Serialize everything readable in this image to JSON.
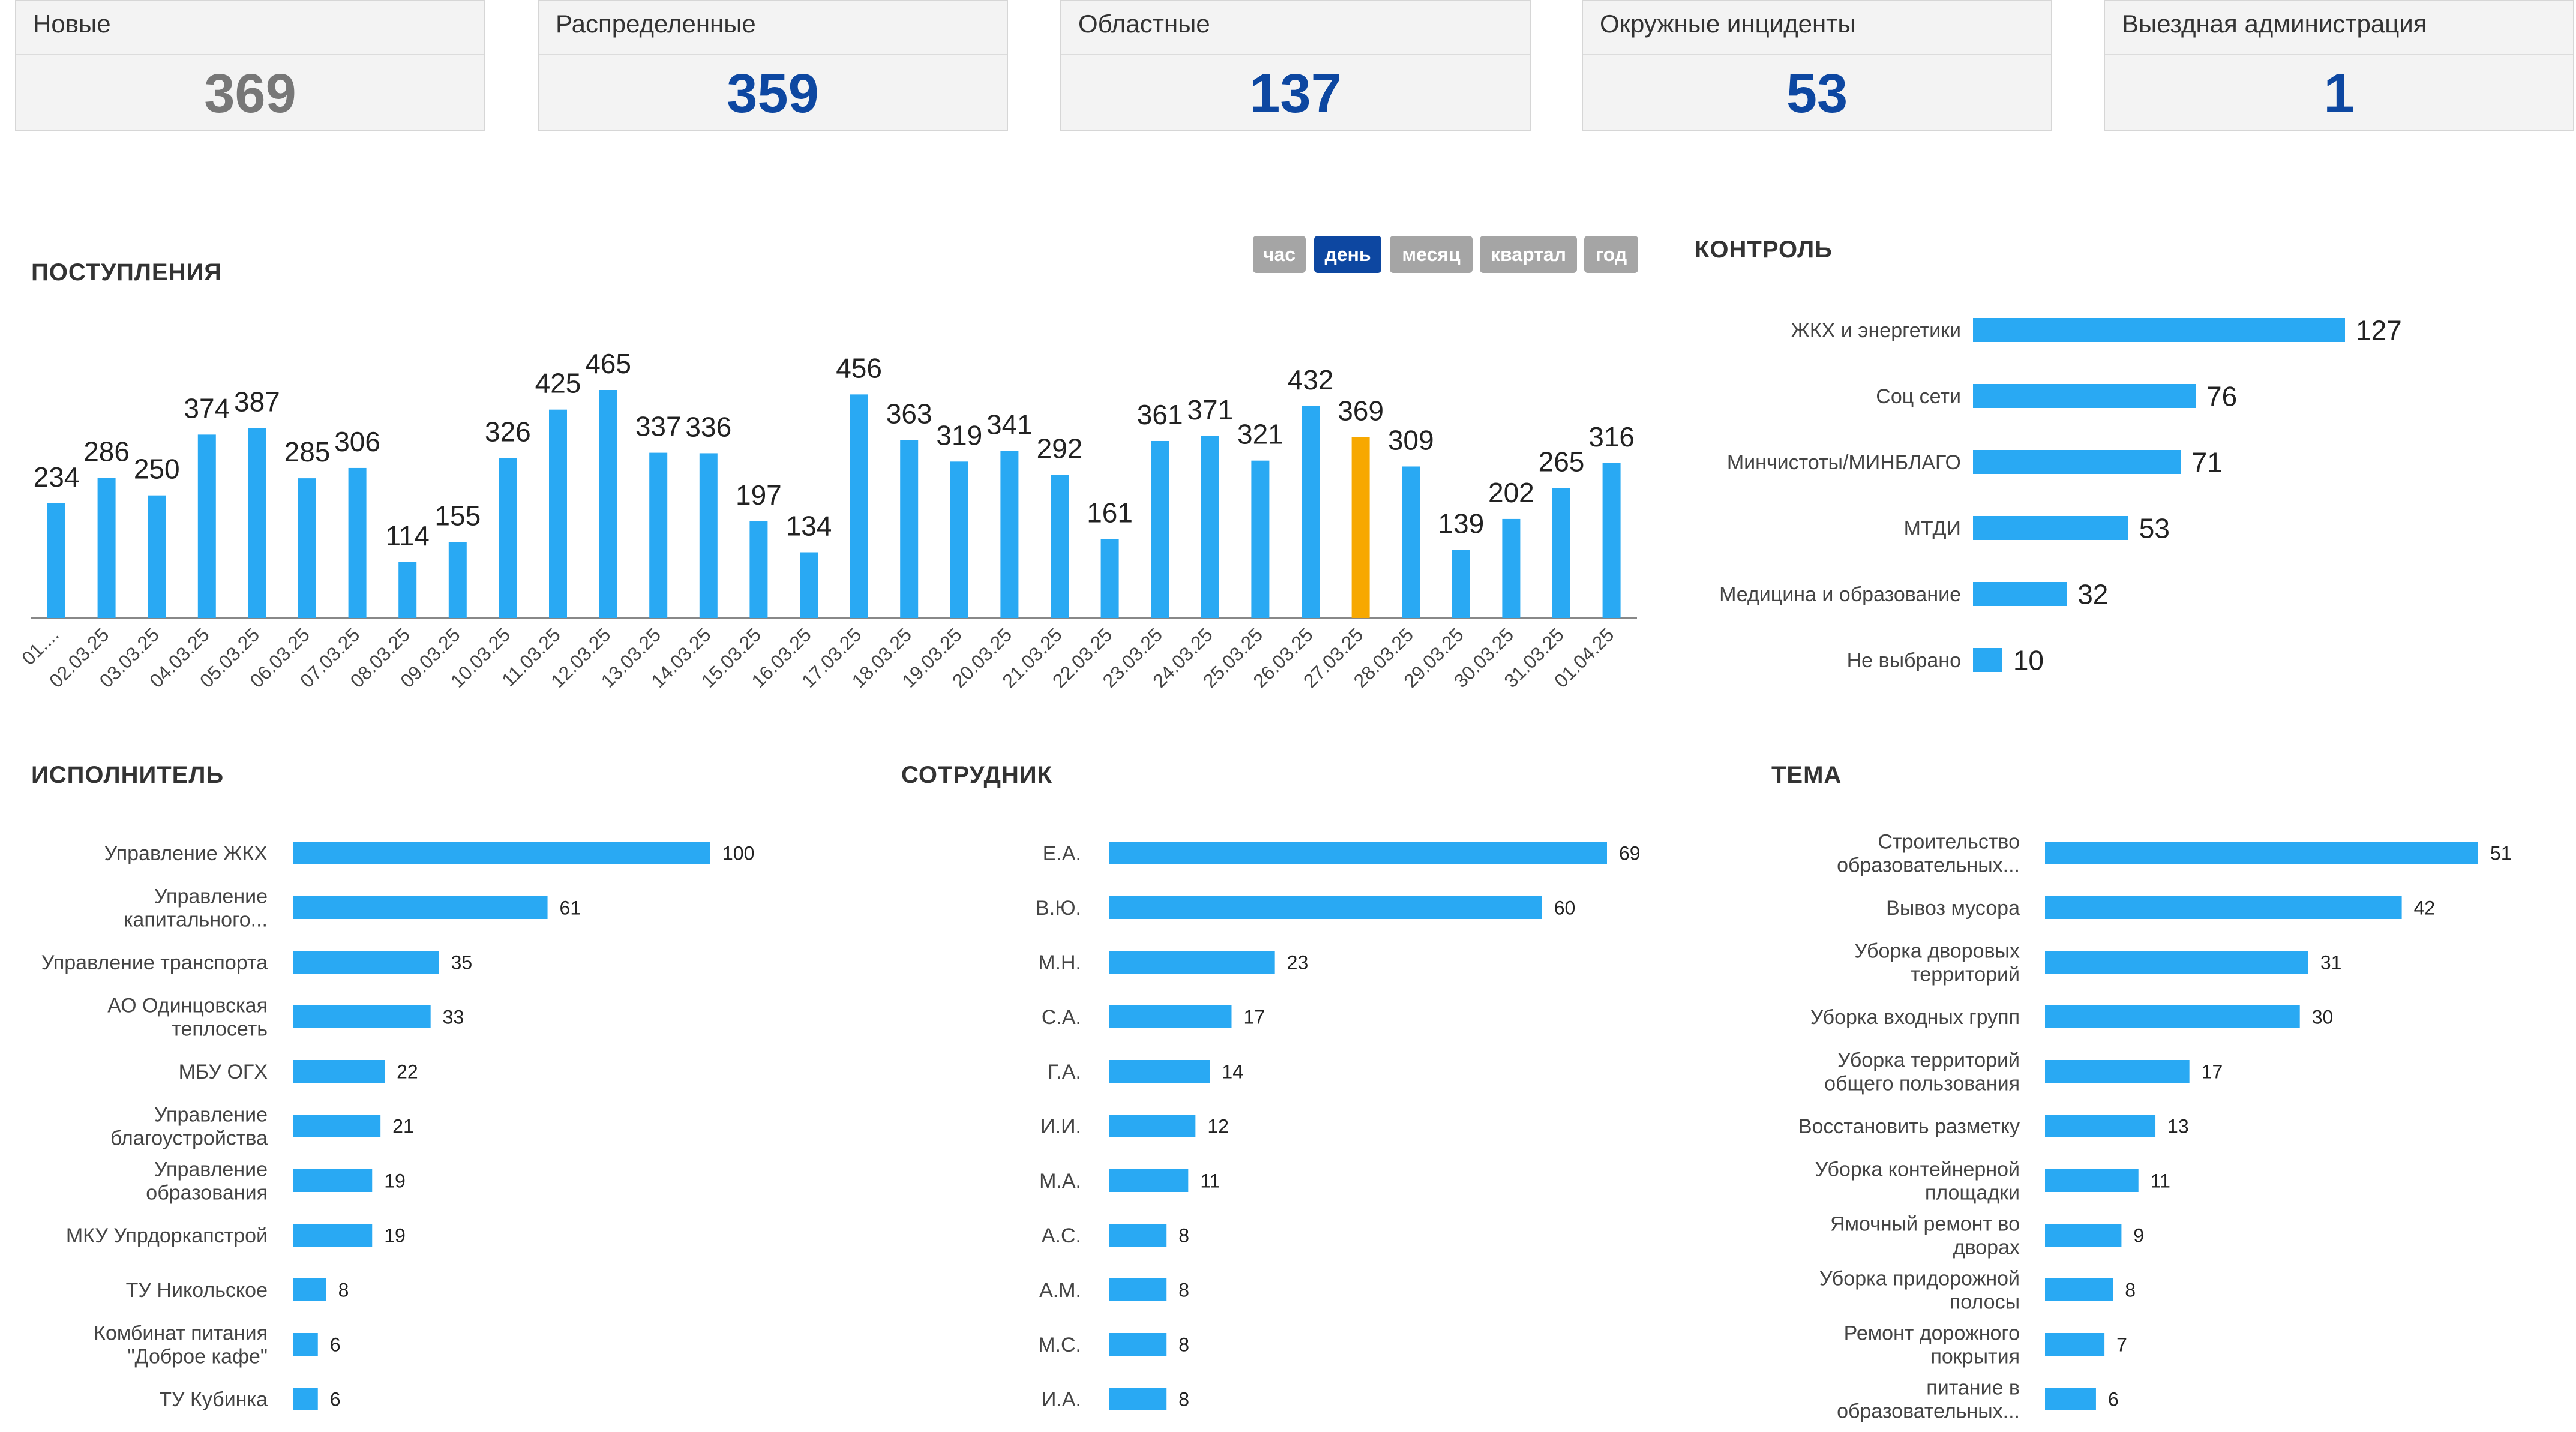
{
  "kpis": [
    {
      "label": "Новые",
      "value": "369",
      "color": "#777777"
    },
    {
      "label": "Распределенные",
      "value": "359",
      "color": "#0d47a1"
    },
    {
      "label": "Областные",
      "value": "137",
      "color": "#0d47a1"
    },
    {
      "label": "Окружные инциденты",
      "value": "53",
      "color": "#0d47a1"
    },
    {
      "label": "Выездная администрация",
      "value": "1",
      "color": "#0d47a1"
    }
  ],
  "receipts": {
    "title": "ПОСТУПЛЕНИЯ",
    "periods": [
      {
        "label": "час",
        "active": false
      },
      {
        "label": "день",
        "active": true
      },
      {
        "label": "месяц",
        "active": false
      },
      {
        "label": "квартал",
        "active": false
      },
      {
        "label": "год",
        "active": false
      }
    ],
    "chart_data": {
      "type": "bar",
      "categories": [
        "01....",
        "02.03.25",
        "03.03.25",
        "04.03.25",
        "05.03.25",
        "06.03.25",
        "07.03.25",
        "08.03.25",
        "09.03.25",
        "10.03.25",
        "11.03.25",
        "12.03.25",
        "13.03.25",
        "14.03.25",
        "15.03.25",
        "16.03.25",
        "17.03.25",
        "18.03.25",
        "19.03.25",
        "20.03.25",
        "21.03.25",
        "22.03.25",
        "23.03.25",
        "24.03.25",
        "25.03.25",
        "26.03.25",
        "27.03.25",
        "28.03.25",
        "29.03.25",
        "30.03.25",
        "31.03.25",
        "01.04.25"
      ],
      "values": [
        234,
        286,
        250,
        374,
        387,
        285,
        306,
        114,
        155,
        326,
        425,
        465,
        337,
        336,
        197,
        134,
        456,
        363,
        319,
        341,
        292,
        161,
        361,
        371,
        321,
        432,
        369,
        309,
        139,
        202,
        265,
        316
      ],
      "highlight_index": 26,
      "bar_color": "#29a9f3",
      "highlight_color": "#f7a800",
      "ylim": [
        0,
        465
      ]
    }
  },
  "control": {
    "title": "КОНТРОЛЬ",
    "chart_data": {
      "type": "bar",
      "orientation": "horizontal",
      "categories": [
        "ЖКХ и энергетики",
        "Соц сети",
        "Минчистоты/МИНБЛАГО",
        "МТДИ",
        "Медицина и образование",
        "Не выбрано"
      ],
      "values": [
        127,
        76,
        71,
        53,
        32,
        10
      ],
      "bar_color": "#29a9f3"
    }
  },
  "executor": {
    "title": "ИСПОЛНИТЕЛЬ",
    "chart_data": {
      "type": "bar",
      "orientation": "horizontal",
      "categories": [
        [
          "Управление ЖКХ"
        ],
        [
          "Управление",
          "капитального..."
        ],
        [
          "Управление транспорта"
        ],
        [
          "АО Одинцовская",
          "теплосеть"
        ],
        [
          "МБУ ОГХ"
        ],
        [
          "Управление",
          "благоустройства"
        ],
        [
          "Управление",
          "образования"
        ],
        [
          "МКУ Упрдоркапстрой"
        ],
        [
          "ТУ Никольское"
        ],
        [
          "Комбинат питания",
          "\"Доброе кафе\""
        ],
        [
          "ТУ Кубинка"
        ]
      ],
      "values": [
        100,
        61,
        35,
        33,
        22,
        21,
        19,
        19,
        8,
        6,
        6
      ],
      "bar_color": "#29a9f3"
    }
  },
  "employee": {
    "title": "СОТРУДНИК",
    "chart_data": {
      "type": "bar",
      "orientation": "horizontal",
      "categories": [
        [
          "Е.А."
        ],
        [
          "В.Ю."
        ],
        [
          "М.Н."
        ],
        [
          "С.А."
        ],
        [
          "Г.А."
        ],
        [
          "И.И."
        ],
        [
          "М.А."
        ],
        [
          "А.С."
        ],
        [
          "А.М."
        ],
        [
          "М.С."
        ],
        [
          "И.А."
        ]
      ],
      "values": [
        69,
        60,
        23,
        17,
        14,
        12,
        11,
        8,
        8,
        8,
        8
      ],
      "bar_color": "#29a9f3"
    }
  },
  "topic": {
    "title": "ТЕМА",
    "chart_data": {
      "type": "bar",
      "orientation": "horizontal",
      "categories": [
        [
          "Строительство",
          "образовательных..."
        ],
        [
          "Вывоз мусора"
        ],
        [
          "Уборка дворовых",
          "территорий"
        ],
        [
          "Уборка входных групп"
        ],
        [
          "Уборка территорий",
          "общего пользования"
        ],
        [
          "Восстановить разметку"
        ],
        [
          "Уборка контейнерной",
          "площадки"
        ],
        [
          "Ямочный ремонт во",
          "дворах"
        ],
        [
          "Уборка придорожной",
          "полосы"
        ],
        [
          "Ремонт дорожного",
          "покрытия"
        ],
        [
          "питание в",
          "образовательных..."
        ]
      ],
      "values": [
        51,
        42,
        31,
        30,
        17,
        13,
        11,
        9,
        8,
        7,
        6
      ],
      "bar_color": "#29a9f3"
    }
  }
}
